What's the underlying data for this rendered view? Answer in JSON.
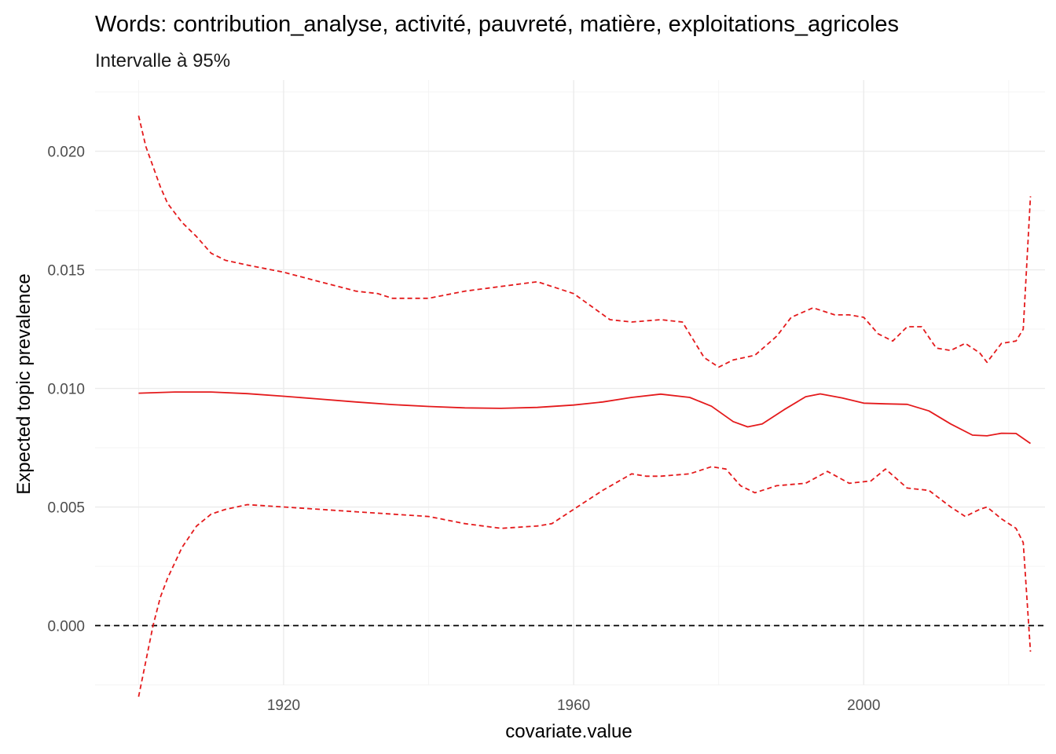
{
  "chart_data": {
    "type": "line",
    "title": "Words: contribution_analyse, activité, pauvreté, matière, exploitations_agricoles",
    "subtitle": "Intervalle à 95%",
    "xlabel": "covariate.value",
    "ylabel": "Expected topic prevalence",
    "xlim": [
      1894,
      2025
    ],
    "ylim": [
      -0.0025,
      0.023
    ],
    "x_ticks": [
      1920,
      1960,
      2000
    ],
    "y_ticks": [
      0.0,
      0.005,
      0.01,
      0.015,
      0.02
    ],
    "x_tick_labels": [
      "1920",
      "1960",
      "2000"
    ],
    "y_tick_labels": [
      "0.000",
      "0.005",
      "0.010",
      "0.015",
      "0.020"
    ],
    "grid": true,
    "reference_line": {
      "y": 0,
      "color": "#000000",
      "style": "dashed"
    },
    "series_color": "#e41a1c",
    "series": [
      {
        "style": "solid",
        "x": [
          1900,
          1905,
          1910,
          1915,
          1920,
          1925,
          1930,
          1935,
          1940,
          1945,
          1950,
          1955,
          1960,
          1964,
          1968,
          1972,
          1976,
          1979,
          1982,
          1984,
          1986,
          1989,
          1992,
          1994,
          1997,
          2000,
          2003,
          2006,
          2009,
          2012,
          2015,
          2017,
          2019,
          2021,
          2023
        ],
        "y": [
          0.0098,
          0.00985,
          0.00985,
          0.00978,
          0.00967,
          0.00955,
          0.00943,
          0.00932,
          0.00924,
          0.00918,
          0.00916,
          0.0092,
          0.0093,
          0.00943,
          0.00962,
          0.00976,
          0.00962,
          0.00925,
          0.0086,
          0.00838,
          0.0085,
          0.0091,
          0.00965,
          0.00977,
          0.0096,
          0.00938,
          0.00935,
          0.00933,
          0.00905,
          0.0085,
          0.00803,
          0.008,
          0.00811,
          0.0081,
          0.00768
        ]
      },
      {
        "style": "dashed",
        "x": [
          1900,
          1901,
          1903,
          1904,
          1906,
          1908,
          1910,
          1912,
          1915,
          1920,
          1925,
          1930,
          1933,
          1935,
          1940,
          1945,
          1950,
          1955,
          1960,
          1965,
          1968,
          1972,
          1975,
          1978,
          1980,
          1982,
          1985,
          1988,
          1990,
          1993,
          1996,
          1998,
          2000,
          2002,
          2004,
          2006,
          2008,
          2010,
          2012,
          2014,
          2016,
          2017,
          2019,
          2021,
          2022,
          2023
        ],
        "y": [
          0.0215,
          0.0202,
          0.0185,
          0.0178,
          0.017,
          0.0164,
          0.0157,
          0.0154,
          0.0152,
          0.0149,
          0.0145,
          0.0141,
          0.014,
          0.0138,
          0.0138,
          0.0141,
          0.0143,
          0.0145,
          0.014,
          0.0129,
          0.0128,
          0.0129,
          0.0128,
          0.0113,
          0.0109,
          0.0112,
          0.0114,
          0.0122,
          0.013,
          0.0134,
          0.0131,
          0.0131,
          0.013,
          0.0123,
          0.012,
          0.0126,
          0.0126,
          0.0117,
          0.0116,
          0.0119,
          0.0115,
          0.0111,
          0.0119,
          0.012,
          0.0125,
          0.0181
        ]
      },
      {
        "style": "dashed",
        "x": [
          1900,
          1901,
          1902,
          1903,
          1904,
          1906,
          1908,
          1910,
          1912,
          1915,
          1920,
          1925,
          1930,
          1935,
          1940,
          1945,
          1950,
          1955,
          1957,
          1960,
          1964,
          1968,
          1970,
          1972,
          1976,
          1979,
          1981,
          1983,
          1985,
          1988,
          1992,
          1995,
          1998,
          2001,
          2003,
          2006,
          2009,
          2012,
          2014,
          2016,
          2017,
          2019,
          2021,
          2022,
          2023
        ],
        "y": [
          -0.003,
          -0.0015,
          0.0,
          0.0012,
          0.002,
          0.0033,
          0.0042,
          0.0047,
          0.0049,
          0.0051,
          0.005,
          0.0049,
          0.0048,
          0.0047,
          0.0046,
          0.0043,
          0.0041,
          0.0042,
          0.0043,
          0.0049,
          0.0057,
          0.0064,
          0.0063,
          0.0063,
          0.0064,
          0.0067,
          0.0066,
          0.0059,
          0.0056,
          0.0059,
          0.006,
          0.0065,
          0.006,
          0.0061,
          0.0066,
          0.0058,
          0.0057,
          0.005,
          0.0046,
          0.0049,
          0.005,
          0.0045,
          0.0041,
          0.0035,
          -0.0011
        ]
      }
    ]
  }
}
